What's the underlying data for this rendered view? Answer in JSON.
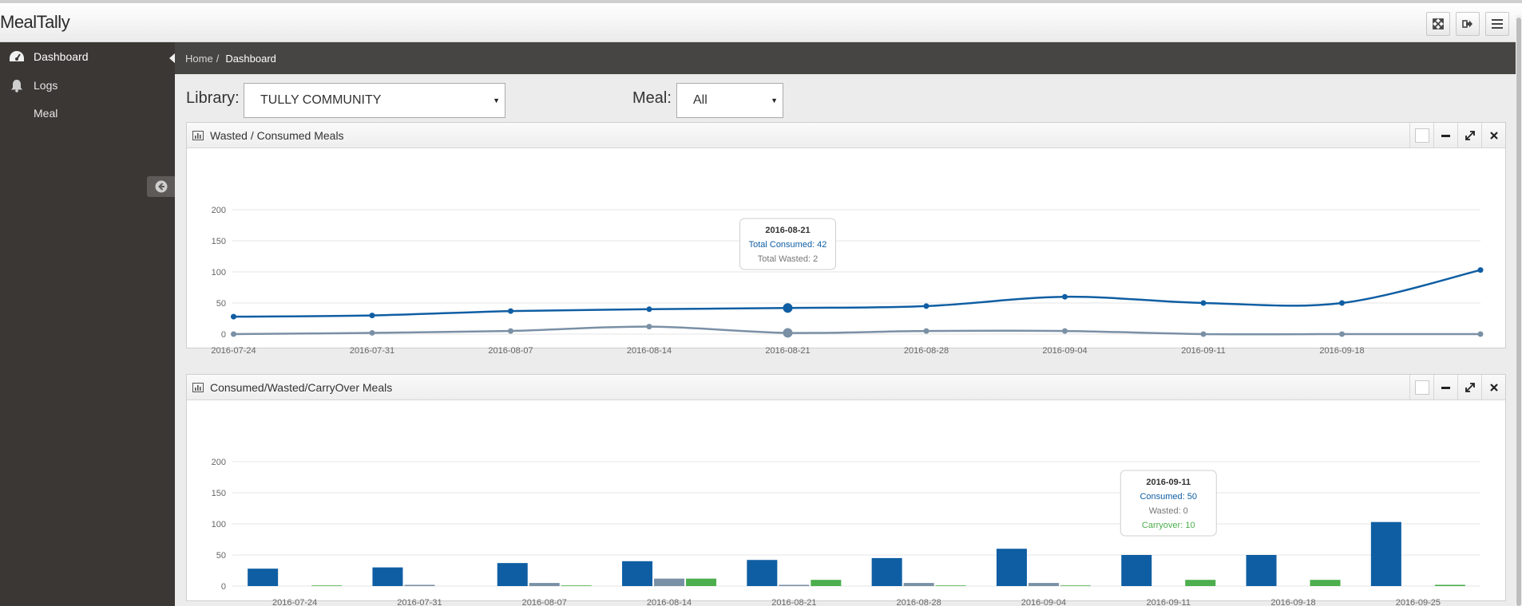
{
  "app": {
    "title": "MealTally"
  },
  "top_buttons": [
    "fullscreen-icon",
    "logout-icon",
    "menu-icon"
  ],
  "sidebar": {
    "items": [
      {
        "label": "Dashboard",
        "icon": "dashboard-icon"
      },
      {
        "label": "Logs",
        "icon": "bell-icon"
      },
      {
        "label": "Meal",
        "icon": ""
      }
    ]
  },
  "breadcrumb": {
    "home": "Home",
    "separator": "/",
    "current": "Dashboard"
  },
  "filters": {
    "library_label": "Library:",
    "library_value": "TULLY COMMUNITY",
    "meal_label": "Meal:",
    "meal_value": "All"
  },
  "colors": {
    "consumed": "#0f5ea3",
    "wasted": "#7a90a5",
    "carryover": "#4cae4c",
    "grid": "#e6e6e6"
  },
  "widgets": [
    {
      "title": "Wasted / Consumed Meals",
      "icon": "bar-chart-icon"
    },
    {
      "title": "Consumed/Wasted/CarryOver Meals",
      "icon": "bar-chart-icon"
    }
  ],
  "chart_data": [
    {
      "type": "line",
      "x": [
        "2016-07-24",
        "2016-07-31",
        "2016-08-07",
        "2016-08-14",
        "2016-08-21",
        "2016-08-28",
        "2016-09-04",
        "2016-09-11",
        "2016-09-18",
        "2016-09-25"
      ],
      "x_tick_labels": [
        "2016-07-24",
        "2016-07-31",
        "2016-08-07",
        "2016-08-14",
        "2016-08-21",
        "2016-08-28",
        "2016-09-04",
        "2016-09-11",
        "2016-09-18"
      ],
      "series": [
        {
          "name": "Total Consumed",
          "values": [
            28,
            30,
            37,
            40,
            42,
            45,
            60,
            50,
            50,
            103
          ]
        },
        {
          "name": "Total Wasted",
          "values": [
            0,
            2,
            5,
            12,
            2,
            5,
            5,
            0,
            0,
            0
          ]
        }
      ],
      "yticks": [
        0,
        50,
        100,
        150,
        200
      ],
      "ylim": [
        0,
        200
      ],
      "grid": true,
      "tooltip": {
        "title": "2016-08-21",
        "lines": [
          "Total Consumed: 42",
          "Total Wasted: 2"
        ],
        "index": 4
      }
    },
    {
      "type": "bar",
      "categories": [
        "2016-07-24",
        "2016-07-31",
        "2016-08-07",
        "2016-08-14",
        "2016-08-21",
        "2016-08-28",
        "2016-09-04",
        "2016-09-11",
        "2016-09-18",
        "2016-09-25"
      ],
      "series": [
        {
          "name": "Consumed",
          "values": [
            28,
            30,
            37,
            40,
            42,
            45,
            60,
            50,
            50,
            103
          ]
        },
        {
          "name": "Wasted",
          "values": [
            0,
            2,
            5,
            12,
            2,
            5,
            5,
            0,
            0,
            0
          ]
        },
        {
          "name": "Carryover",
          "values": [
            1,
            0,
            1,
            12,
            10,
            1,
            1,
            10,
            10,
            2
          ]
        }
      ],
      "yticks": [
        0,
        50,
        100,
        150,
        200
      ],
      "ylim": [
        0,
        200
      ],
      "grid": true,
      "tooltip": {
        "title": "2016-09-11",
        "lines": [
          "Consumed: 50",
          "Wasted: 0",
          "Carryover: 10"
        ],
        "index": 7
      }
    }
  ]
}
